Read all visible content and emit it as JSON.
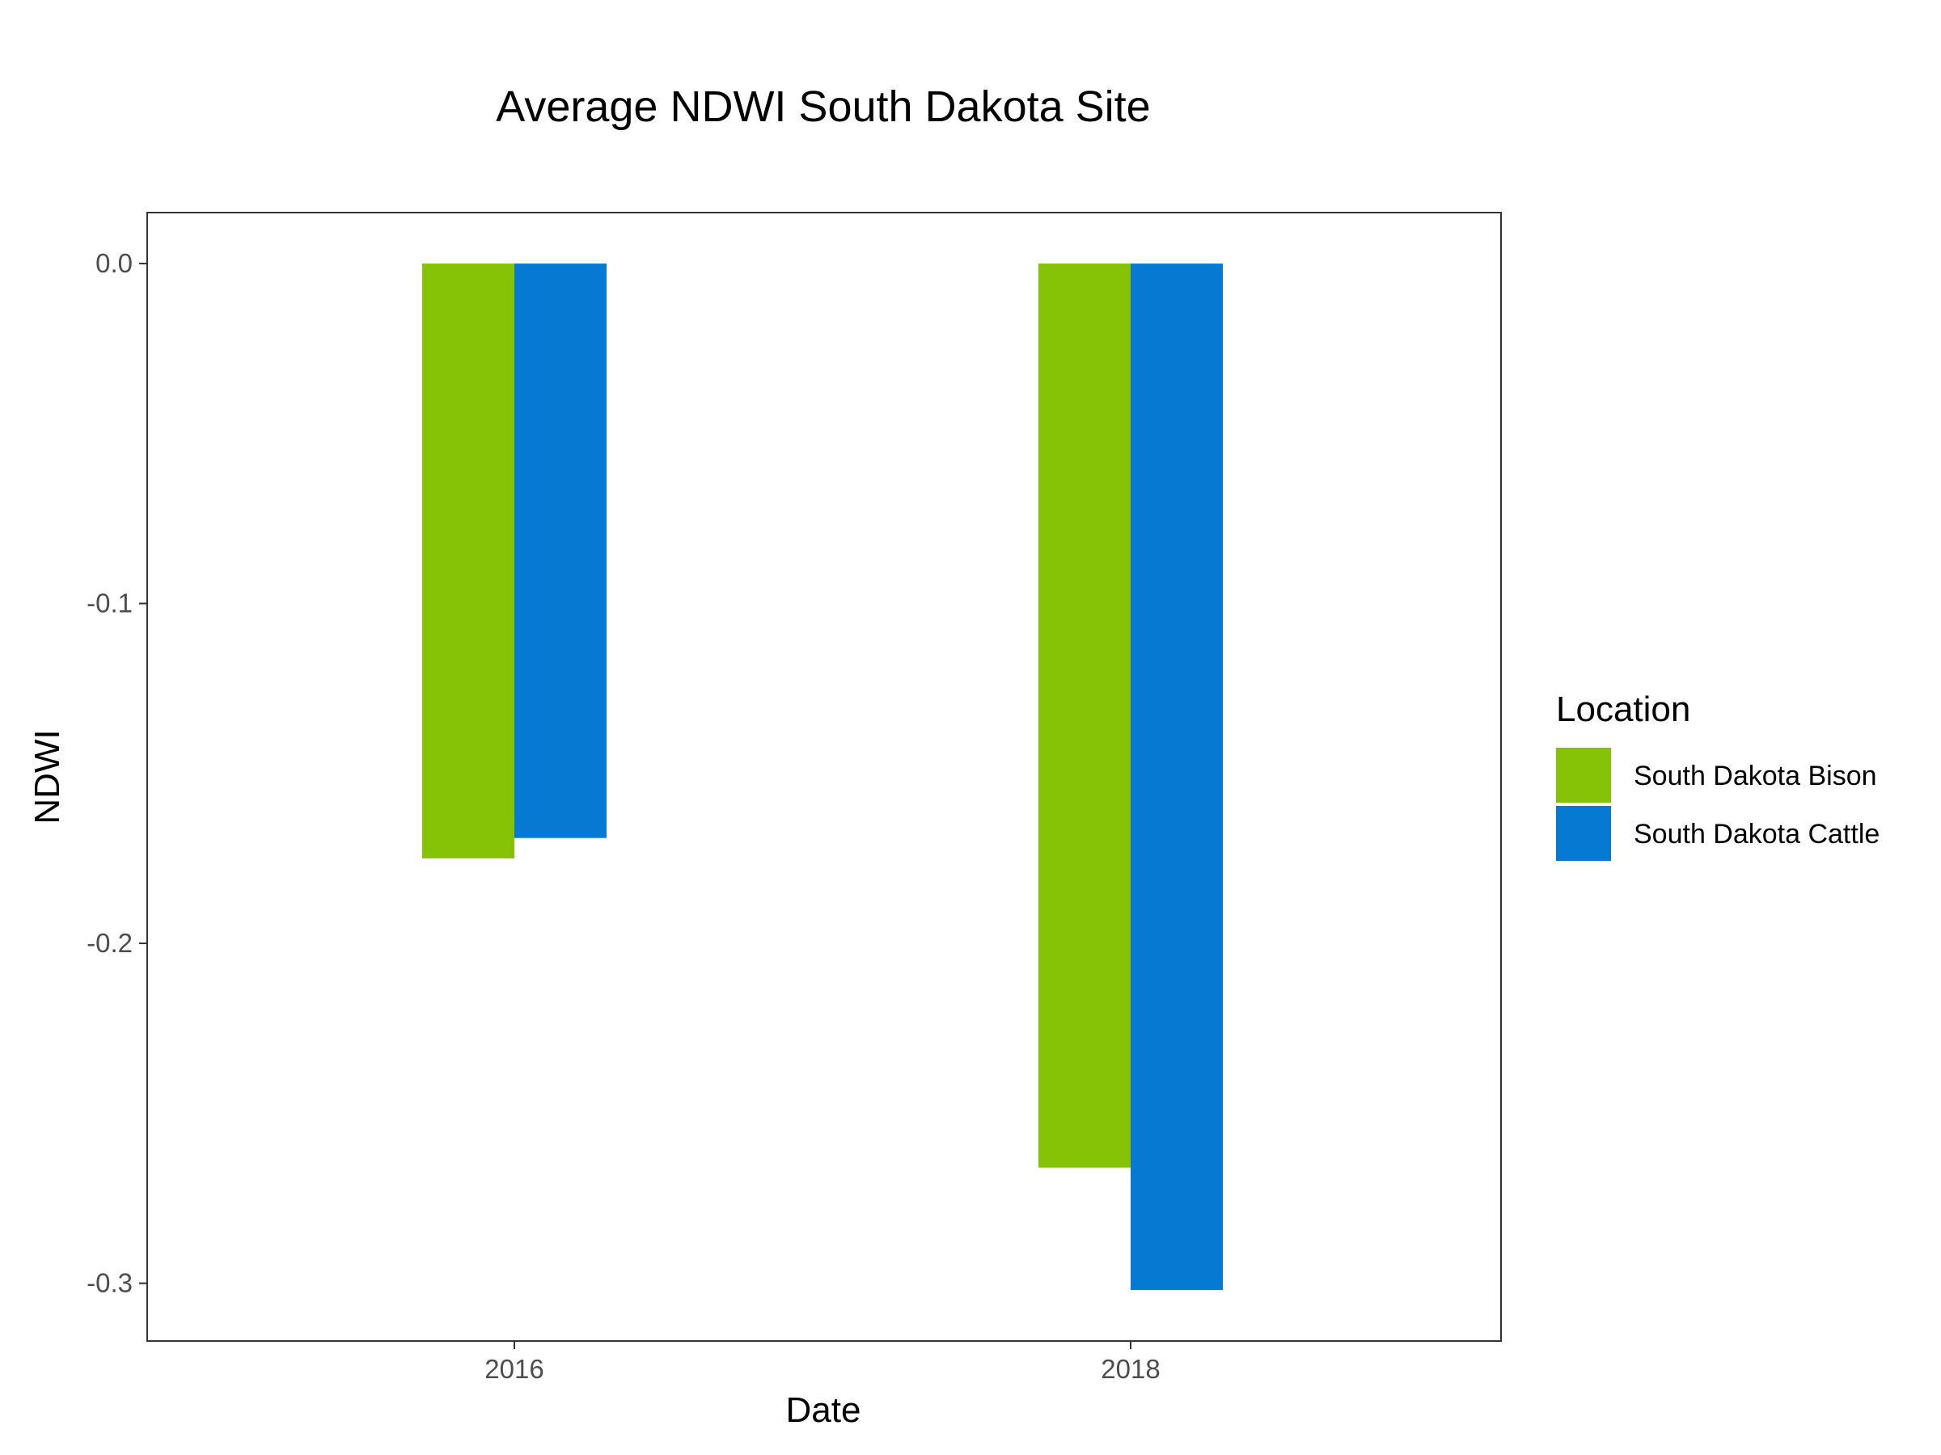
{
  "chart_data": {
    "type": "bar",
    "title": "Average NDWI South Dakota Site",
    "xlabel": "Date",
    "ylabel": "NDWI",
    "categories": [
      "2016",
      "2018"
    ],
    "series": [
      {
        "name": "South Dakota Bison",
        "color": "#86c206",
        "values": [
          -0.175,
          -0.266
        ]
      },
      {
        "name": "South Dakota Cattle",
        "color": "#067ad2",
        "values": [
          -0.169,
          -0.302
        ]
      }
    ],
    "ylim": [
      -0.317,
      0.015
    ],
    "yticks": [
      {
        "value": 0.0,
        "label": "0.0"
      },
      {
        "value": -0.1,
        "label": "-0.1"
      },
      {
        "value": -0.2,
        "label": "-0.2"
      },
      {
        "value": -0.3,
        "label": "-0.3"
      }
    ],
    "grid": false,
    "legend": {
      "title": "Location",
      "position": "right"
    }
  }
}
